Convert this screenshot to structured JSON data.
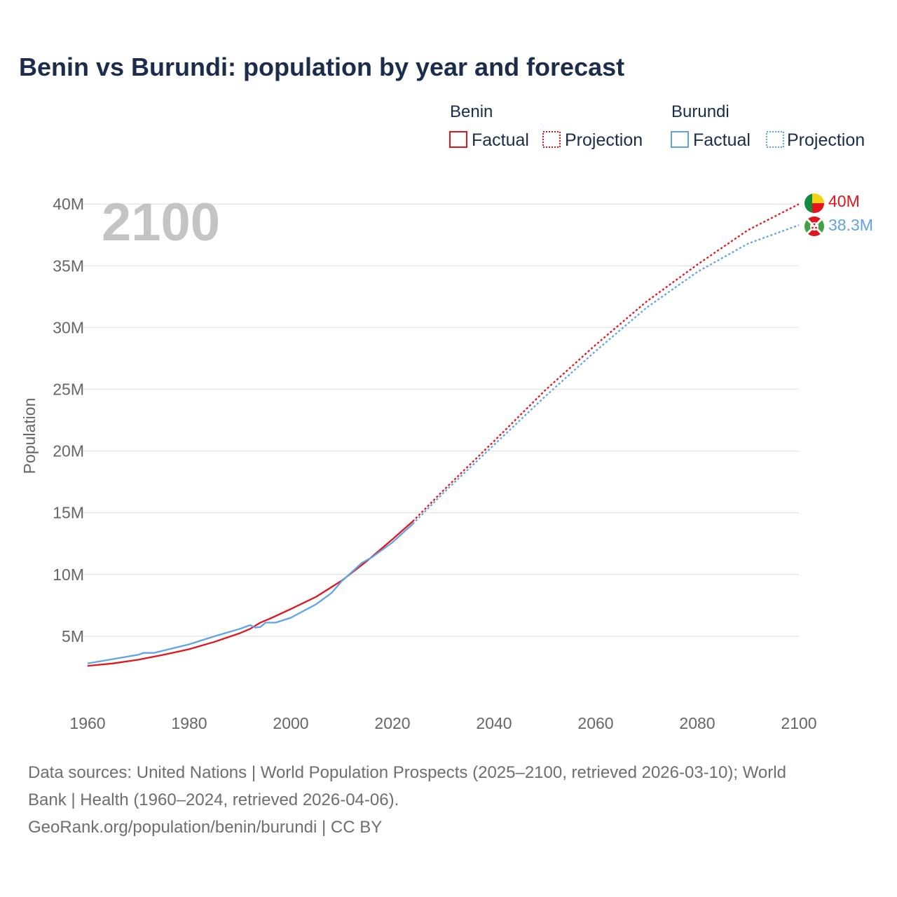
{
  "title": "Benin vs Burundi: population by year and forecast",
  "legend": {
    "groups": [
      {
        "name": "Benin",
        "color": "#e3141b",
        "factual_label": "Factual",
        "projection_label": "Projection"
      },
      {
        "name": "Burundi",
        "color": "#5fa4e8",
        "factual_label": "Factual",
        "projection_label": "Projection"
      }
    ]
  },
  "highlight_year": "2100",
  "chart_data": {
    "type": "line",
    "ylabel": "Population",
    "xlim": [
      1960,
      2100
    ],
    "ylim": [
      0,
      42000000
    ],
    "x_ticks": [
      1960,
      1980,
      2000,
      2020,
      2040,
      2060,
      2080,
      2100
    ],
    "y_ticks": [
      {
        "value": 5000000,
        "label": "5M"
      },
      {
        "value": 10000000,
        "label": "10M"
      },
      {
        "value": 15000000,
        "label": "15M"
      },
      {
        "value": 20000000,
        "label": "20M"
      },
      {
        "value": 25000000,
        "label": "25M"
      },
      {
        "value": 30000000,
        "label": "30M"
      },
      {
        "value": 35000000,
        "label": "35M"
      },
      {
        "value": 40000000,
        "label": "40M"
      }
    ],
    "series": [
      {
        "name": "Benin",
        "color": "#e3141b",
        "end_label": "40M",
        "factual": [
          [
            1960,
            2.6
          ],
          [
            1965,
            2.8
          ],
          [
            1970,
            3.1
          ],
          [
            1975,
            3.5
          ],
          [
            1980,
            3.95
          ],
          [
            1985,
            4.55
          ],
          [
            1990,
            5.25
          ],
          [
            1992,
            5.6
          ],
          [
            1994,
            6.1
          ],
          [
            1996,
            6.45
          ],
          [
            2000,
            7.2
          ],
          [
            2005,
            8.2
          ],
          [
            2010,
            9.5
          ],
          [
            2015,
            11.1
          ],
          [
            2020,
            12.85
          ],
          [
            2024,
            14.3
          ]
        ],
        "projection": [
          [
            2024,
            14.3
          ],
          [
            2030,
            16.8
          ],
          [
            2040,
            20.8
          ],
          [
            2050,
            24.9
          ],
          [
            2060,
            28.6
          ],
          [
            2070,
            32.1
          ],
          [
            2080,
            35.1
          ],
          [
            2090,
            37.9
          ],
          [
            2100,
            40.0
          ]
        ]
      },
      {
        "name": "Burundi",
        "color": "#5fa4e8",
        "end_label": "38.3M",
        "factual": [
          [
            1960,
            2.8
          ],
          [
            1965,
            3.15
          ],
          [
            1970,
            3.5
          ],
          [
            1971,
            3.65
          ],
          [
            1973,
            3.65
          ],
          [
            1975,
            3.85
          ],
          [
            1980,
            4.35
          ],
          [
            1985,
            5.0
          ],
          [
            1990,
            5.6
          ],
          [
            1992,
            5.9
          ],
          [
            1993,
            5.7
          ],
          [
            1994,
            5.75
          ],
          [
            1995,
            6.1
          ],
          [
            1997,
            6.1
          ],
          [
            2000,
            6.5
          ],
          [
            2005,
            7.6
          ],
          [
            2008,
            8.5
          ],
          [
            2010,
            9.45
          ],
          [
            2014,
            10.95
          ],
          [
            2016,
            11.4
          ],
          [
            2020,
            12.6
          ],
          [
            2024,
            14.1
          ]
        ],
        "projection": [
          [
            2024,
            14.1
          ],
          [
            2030,
            16.6
          ],
          [
            2040,
            20.5
          ],
          [
            2050,
            24.4
          ],
          [
            2060,
            28.1
          ],
          [
            2070,
            31.6
          ],
          [
            2080,
            34.5
          ],
          [
            2090,
            36.8
          ],
          [
            2100,
            38.3
          ]
        ]
      }
    ]
  },
  "source": {
    "line1": "Data sources: United Nations | World Population Prospects (2025–2100, retrieved 2026-03-10); World",
    "line2": "Bank | Health (1960–2024, retrieved 2026-04-06).",
    "line3": "GeoRank.org/population/benin/burundi | CC BY"
  }
}
